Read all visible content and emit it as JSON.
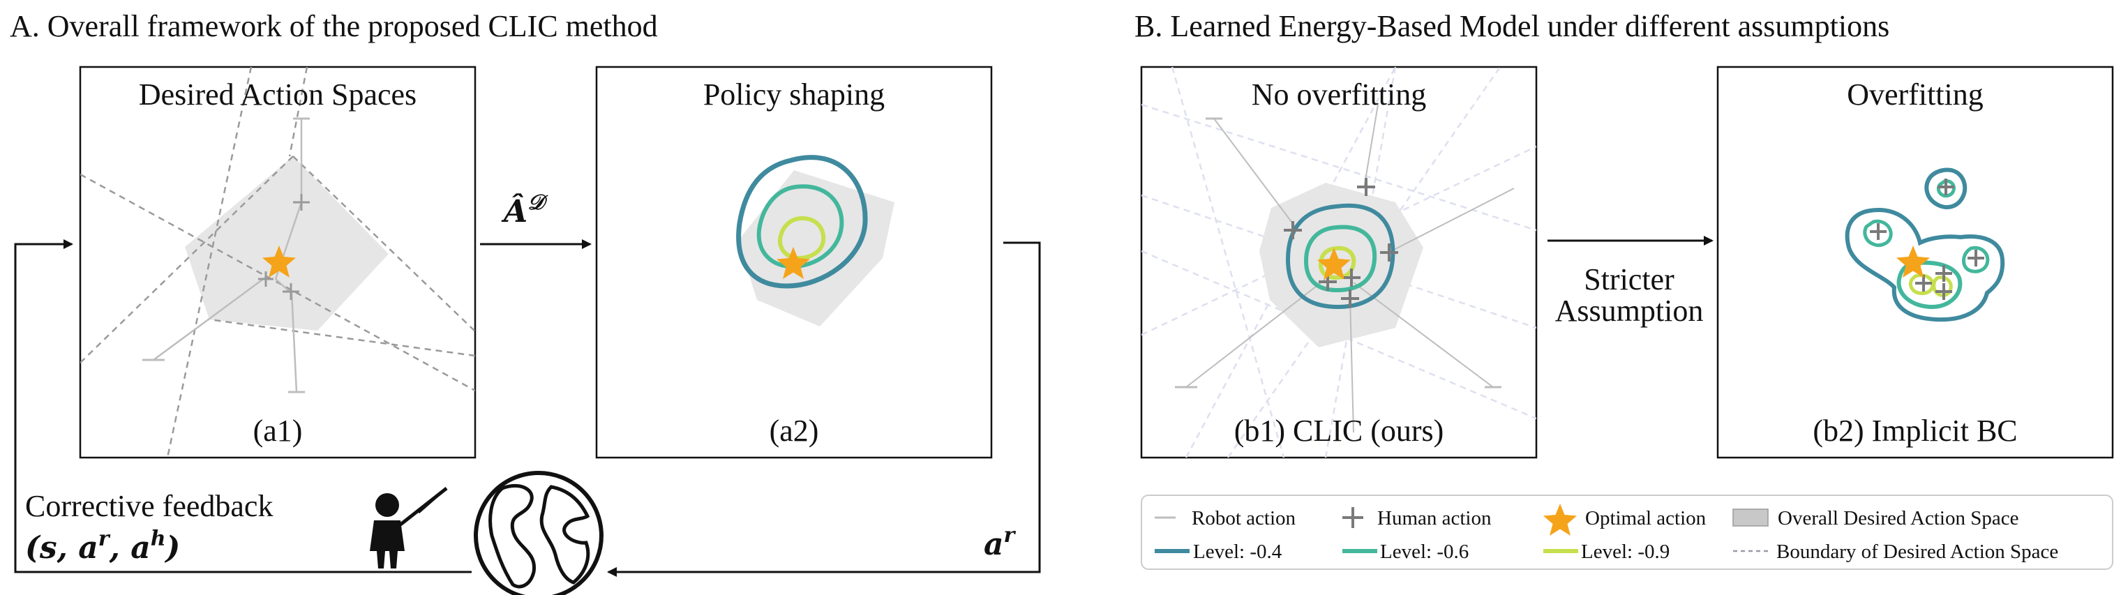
{
  "section_a": {
    "title": "A. Overall framework of the proposed CLIC method",
    "panel_a1": {
      "title": "Desired Action Spaces",
      "caption": "(a1)"
    },
    "panel_a2": {
      "title": "Policy shaping",
      "caption": "(a2)"
    },
    "arrow_label_base": "Â",
    "arrow_label_sup": "𝒟",
    "feedback_label": "Corrective feedback",
    "feedback_tuple": "(s, a",
    "feedback_r": "r",
    "feedback_mid": ", a",
    "feedback_h": "h",
    "feedback_close": ")",
    "robot_action_base": "a",
    "robot_action_sup": "r",
    "icons": [
      "teacher-icon",
      "globe-icon"
    ]
  },
  "section_b": {
    "title": "B. Learned Energy-Based Model under different assumptions",
    "panel_b1": {
      "title": "No overfitting",
      "caption": "(b1) CLIC (ours)"
    },
    "panel_b2": {
      "title": "Overfitting",
      "caption": "(b2) Implicit BC"
    },
    "arrow_label_line1": "Stricter",
    "arrow_label_line2": "Assumption"
  },
  "legend": {
    "items": [
      {
        "label": "Robot action"
      },
      {
        "label": "Human action"
      },
      {
        "label": "Optimal action"
      },
      {
        "label": "Overall Desired Action Space"
      },
      {
        "label": "Level: -0.4"
      },
      {
        "label": "Level: -0.6"
      },
      {
        "label": "Level: -0.9"
      },
      {
        "label": "Boundary of Desired Action Space"
      }
    ]
  },
  "colors": {
    "level_04": "#3f8a9e",
    "level_06": "#43b79c",
    "level_09": "#c6df4d",
    "optimal_star": "#f5a31a",
    "desired_space_fill": "#e6e6e6",
    "human_action": "#7a7a7a",
    "robot_action": "#bdbdbd"
  }
}
